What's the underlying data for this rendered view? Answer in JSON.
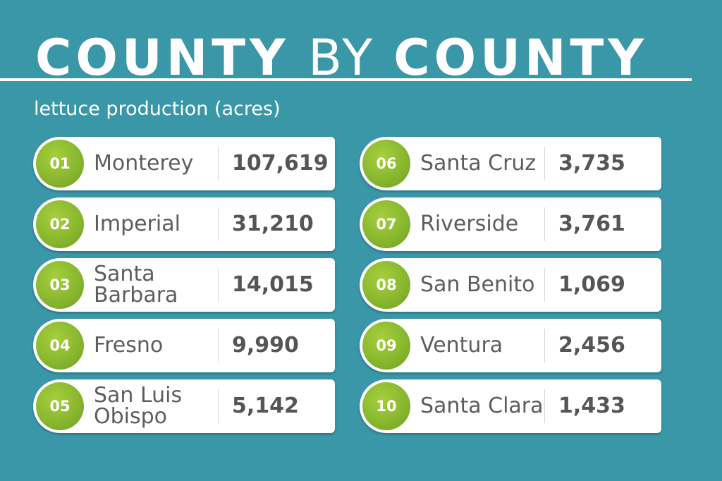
{
  "title": {
    "part1": "COUNTY",
    "part2": "BY",
    "part3": "COUNTY"
  },
  "subtitle": "lettuce production (acres)",
  "colors": {
    "background": "#3a97a8",
    "accent_green": "#86b52d",
    "card": "#ffffff",
    "text": "#5d5d5d"
  },
  "counties": [
    {
      "rank": "01",
      "name": "Monterey",
      "acres": "107,619"
    },
    {
      "rank": "02",
      "name": "Imperial",
      "acres": "31,210"
    },
    {
      "rank": "03",
      "name": "Santa Barbara",
      "acres": "14,015"
    },
    {
      "rank": "04",
      "name": "Fresno",
      "acres": "9,990"
    },
    {
      "rank": "05",
      "name": "San Luis Obispo",
      "acres": "5,142"
    },
    {
      "rank": "06",
      "name": "Santa Cruz",
      "acres": "3,735"
    },
    {
      "rank": "07",
      "name": "Riverside",
      "acres": "3,761"
    },
    {
      "rank": "08",
      "name": "San Benito",
      "acres": "1,069"
    },
    {
      "rank": "09",
      "name": "Ventura",
      "acres": "2,456"
    },
    {
      "rank": "10",
      "name": "Santa Clara",
      "acres": "1,433"
    }
  ]
}
